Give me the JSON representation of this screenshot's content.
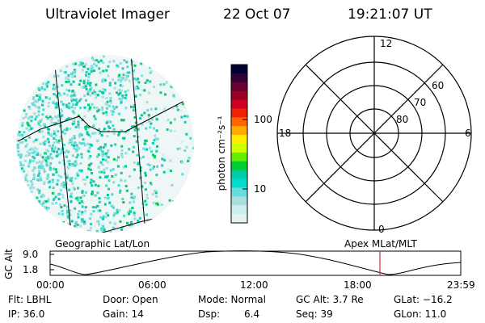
{
  "header": {
    "title": "Ultraviolet Imager",
    "date": "22 Oct 07",
    "time": "19:21:07 UT"
  },
  "colorbar": {
    "unit_label": "photon cm⁻²s⁻¹",
    "ticks": [
      "100",
      "10"
    ],
    "colors": [
      "#000033",
      "#330033",
      "#660033",
      "#990022",
      "#cc0022",
      "#ee2200",
      "#ff6600",
      "#ffaa00",
      "#ffee00",
      "#ccff00",
      "#66ee00",
      "#00cc33",
      "#00ccaa",
      "#00ddcc",
      "#66dddd",
      "#aadddd",
      "#cceeee",
      "#e4f2f2"
    ]
  },
  "polar_plot": {
    "mlt_labels": [
      "12",
      "18",
      "6",
      "0"
    ],
    "lat_labels": [
      "60",
      "70",
      "80"
    ]
  },
  "orbit": {
    "left_label": "Geographic Lat/Lon",
    "right_label": "Apex MLat/MLT",
    "y_axis_label": "GC Alt",
    "y_ticks": [
      "9.0",
      "1.8"
    ],
    "x_ticks": [
      "00:00",
      "06:00",
      "12:00",
      "18:00",
      "23:59"
    ],
    "marker_color": "#cc3333"
  },
  "status": {
    "row1": [
      "Flt: LBHL",
      "Door: Open",
      "Mode: Normal",
      "GC Alt: 3.7 Re",
      "GLat: −16.2"
    ],
    "row2": [
      "IP: 36.0",
      "Gain: 14",
      "Dsp:",
      "6.4",
      "Seq: 39",
      "GLon: 11.0"
    ]
  }
}
